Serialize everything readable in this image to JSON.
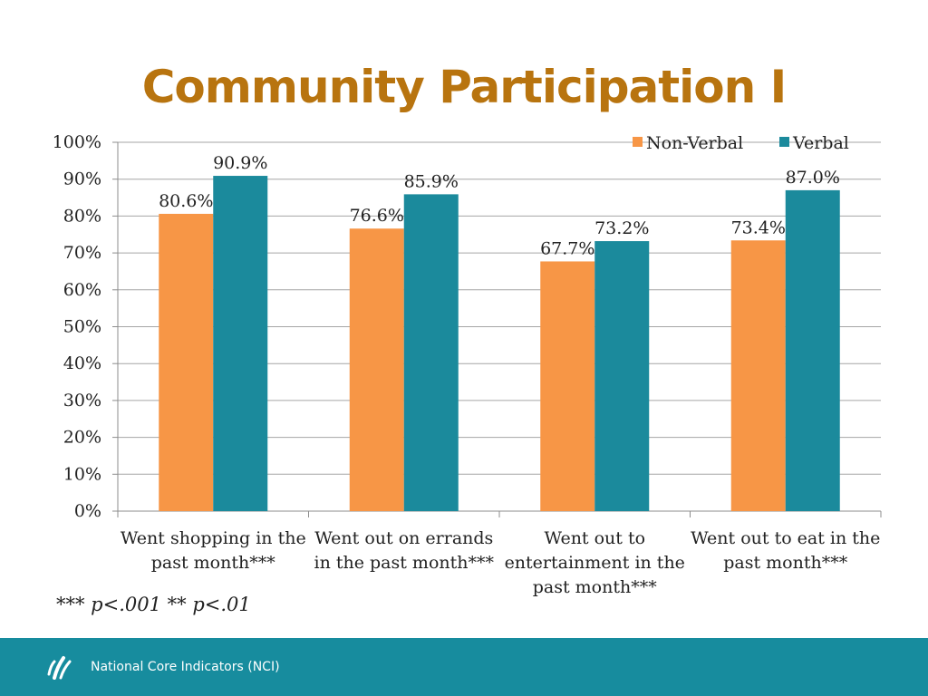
{
  "slide": {
    "title": "Community Participation I",
    "footnote": "*** p<.001 ** p<.01",
    "footer_text": "National Core Indicators (NCI)",
    "logo_icon": "nci-logo-icon"
  },
  "colors": {
    "title": "#b8740f",
    "footer_band": "#178c9e",
    "gridline": "#a6a6a6",
    "axis": "#8c8c8c",
    "text": "#222222"
  },
  "chart_data": {
    "type": "bar",
    "title": "",
    "xlabel": "",
    "ylabel": "",
    "ylim": [
      0,
      100
    ],
    "y_ticks": [
      "0%",
      "10%",
      "20%",
      "30%",
      "40%",
      "50%",
      "60%",
      "70%",
      "80%",
      "90%",
      "100%"
    ],
    "grid": true,
    "legend_position": "top-right",
    "categories": [
      [
        "Went shopping in the",
        "past month***"
      ],
      [
        "Went out on errands",
        "in the past month***"
      ],
      [
        "Went out to",
        "entertainment in the",
        "past month***"
      ],
      [
        "Went out to eat in the",
        "past month***"
      ]
    ],
    "series": [
      {
        "name": "Non-Verbal",
        "color": "#f79646",
        "values": [
          80.6,
          76.6,
          67.7,
          73.4
        ],
        "labels": [
          "80.6%",
          "76.6%",
          "67.7%",
          "73.4%"
        ]
      },
      {
        "name": "Verbal",
        "color": "#1b8a9c",
        "values": [
          90.9,
          85.9,
          73.2,
          87.0
        ],
        "labels": [
          "90.9%",
          "85.9%",
          "73.2%",
          "87.0%"
        ]
      }
    ]
  }
}
